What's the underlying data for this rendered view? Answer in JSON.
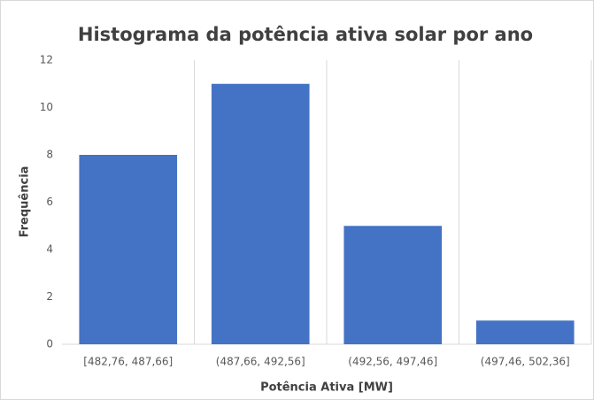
{
  "chart_data": {
    "type": "bar",
    "title": "Histograma da potência ativa solar por ano",
    "x_label": "Potência Ativa [MW]",
    "y_label": "Frequência",
    "categories": [
      "[482,76, 487,66]",
      "(487,66, 492,56]",
      "(492,56, 497,46]",
      "(497,46, 502,36]"
    ],
    "values": [
      8,
      11,
      5,
      1
    ],
    "color": "#4472c4",
    "ylim": [
      0,
      12
    ],
    "yticks": [
      0,
      2,
      4,
      6,
      8,
      10,
      12
    ],
    "grid": false
  }
}
